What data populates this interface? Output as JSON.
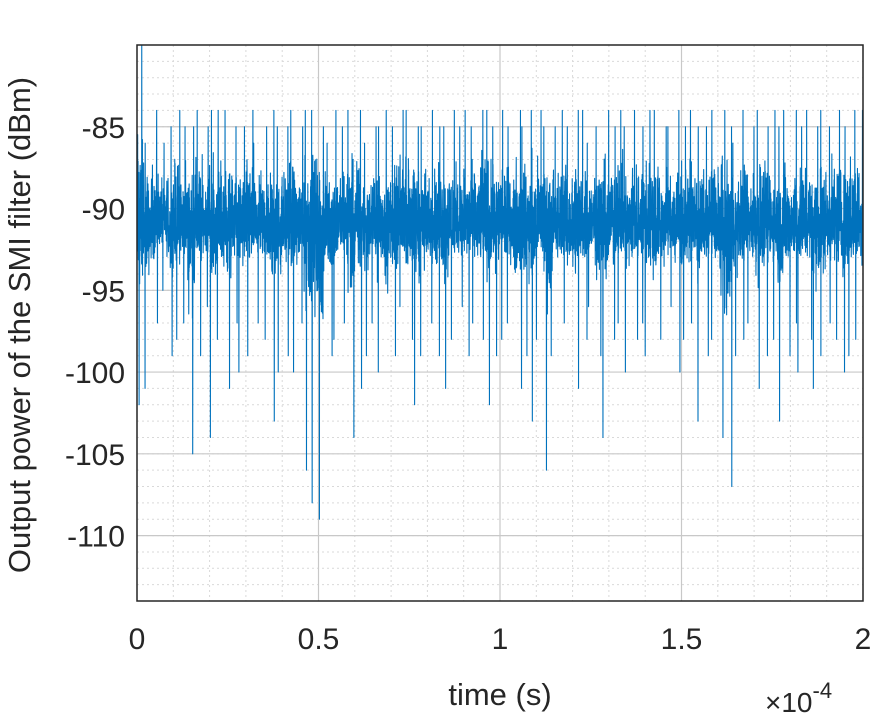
{
  "chart_data": {
    "type": "line",
    "title": "",
    "xlabel": "time (s)",
    "ylabel": "Output power of the SMI filter (dBm)",
    "x_exponent_label": "×10",
    "x_exponent_power": "-4",
    "x_multiplier": 0.0001,
    "xlim": [
      0,
      2
    ],
    "ylim": [
      -114,
      -80
    ],
    "x_ticks": [
      0,
      0.5,
      1,
      1.5,
      2
    ],
    "x_tick_labels": [
      "0",
      "0.5",
      "1",
      "1.5",
      "2"
    ],
    "y_ticks": [
      -85,
      -90,
      -95,
      -100,
      -105,
      -110
    ],
    "y_tick_labels": [
      "-85",
      "-90",
      "-95",
      "-100",
      "-105",
      "-110"
    ],
    "grid": true,
    "minor_grid": true,
    "line_color": "#0072BD",
    "series": [
      {
        "x": [
          0,
          0.02,
          0.04,
          0.06,
          0.08,
          0.1,
          0.12,
          0.14,
          0.16,
          0.18,
          0.2,
          0.22,
          0.24,
          0.26,
          0.28,
          0.3,
          0.32,
          0.34,
          0.36,
          0.38,
          0.4,
          0.42,
          0.44,
          0.46,
          0.48,
          0.5,
          0.52,
          0.54,
          0.56,
          0.58,
          0.6,
          0.62,
          0.64,
          0.66,
          0.68,
          0.7,
          0.72,
          0.74,
          0.76,
          0.78,
          0.8,
          0.82,
          0.84,
          0.86,
          0.88,
          0.9,
          0.92,
          0.94,
          0.96,
          0.98,
          1,
          1.02,
          1.04,
          1.06,
          1.08,
          1.1,
          1.12,
          1.14,
          1.16,
          1.18,
          1.2,
          1.22,
          1.24,
          1.26,
          1.28,
          1.3,
          1.32,
          1.34,
          1.36,
          1.38,
          1.4,
          1.42,
          1.44,
          1.46,
          1.48,
          1.5,
          1.52,
          1.54,
          1.56,
          1.58,
          1.6,
          1.62,
          1.64,
          1.66,
          1.68,
          1.7,
          1.72,
          1.74,
          1.76,
          1.78,
          1.8,
          1.82,
          1.84,
          1.86,
          1.88,
          1.9,
          1.92,
          1.94,
          1.96,
          1.98,
          2
        ],
        "min": [
          -102,
          -101,
          -97,
          -95,
          -99,
          -98,
          -97,
          -105,
          -99,
          -96,
          -104,
          -98,
          -101,
          -97,
          -100,
          -99,
          -97,
          -98,
          -103,
          -100,
          -99,
          -100,
          -97,
          -106,
          -108,
          -109,
          -99,
          -98,
          -97,
          -104,
          -101,
          -99,
          -97,
          -100,
          -103,
          -99,
          -96,
          -98,
          -102,
          -99,
          -97,
          -99,
          -101,
          -98,
          -96,
          -99,
          -97,
          -98,
          -102,
          -99,
          -98,
          -97,
          -101,
          -99,
          -103,
          -98,
          -106,
          -99,
          -97,
          -100,
          -101,
          -98,
          -96,
          -99,
          -104,
          -98,
          -97,
          -100,
          -98,
          -97,
          -99,
          -101,
          -98,
          -96,
          -100,
          -98,
          -97,
          -103,
          -99,
          -98,
          -104,
          -107,
          -99,
          -98,
          -97,
          -101,
          -99,
          -98,
          -103,
          -99,
          -97,
          -100,
          -98,
          -101,
          -99,
          -97,
          -98,
          -100,
          -99,
          -98,
          -96
        ],
        "max": [
          -80,
          -86,
          -84,
          -86,
          -85,
          -84,
          -85,
          -85,
          -84,
          -85,
          -84,
          -84,
          -84,
          -85,
          -85,
          -84,
          -86,
          -85,
          -84,
          -85,
          -85,
          -84,
          -85,
          -84,
          -84,
          -85,
          -86,
          -84,
          -85,
          -84,
          -84,
          -86,
          -85,
          -85,
          -84,
          -85,
          -84,
          -84,
          -85,
          -85,
          -84,
          -85,
          -85,
          -84,
          -85,
          -84,
          -85,
          -84,
          -84,
          -85,
          -84,
          -85,
          -84,
          -85,
          -84,
          -84,
          -85,
          -85,
          -84,
          -85,
          -84,
          -84,
          -86,
          -85,
          -84,
          -85,
          -84,
          -85,
          -84,
          -85,
          -84,
          -84,
          -85,
          -85,
          -84,
          -85,
          -84,
          -85,
          -85,
          -84,
          -84,
          -85,
          -86,
          -84,
          -85,
          -84,
          -85,
          -84,
          -85,
          -84,
          -84,
          -85,
          -84,
          -85,
          -84,
          -85,
          -84,
          -85,
          -84,
          -84,
          -86
        ],
        "mean": [
          -91,
          -91,
          -91,
          -91,
          -91,
          -91,
          -91,
          -91,
          -91,
          -91,
          -91,
          -91,
          -91,
          -91,
          -91,
          -91,
          -91,
          -91,
          -91,
          -91,
          -91,
          -91,
          -91,
          -91,
          -91,
          -91,
          -91,
          -91,
          -91,
          -91,
          -91,
          -91,
          -91,
          -91,
          -91,
          -91,
          -91,
          -91,
          -91,
          -91,
          -91,
          -91,
          -91,
          -91,
          -91,
          -91,
          -91,
          -91,
          -91,
          -91,
          -91,
          -91,
          -91,
          -91,
          -91,
          -91,
          -91,
          -91,
          -91,
          -91,
          -91,
          -91,
          -91,
          -91,
          -91,
          -91,
          -91,
          -91,
          -91,
          -91,
          -91,
          -91,
          -91,
          -91,
          -91,
          -91,
          -91,
          -91,
          -91,
          -91,
          -91,
          -91,
          -91,
          -91,
          -91,
          -91,
          -91,
          -91,
          -91,
          -91,
          -91,
          -91,
          -91,
          -91,
          -91,
          -91,
          -91,
          -91,
          -91,
          -91,
          -91
        ]
      }
    ]
  }
}
